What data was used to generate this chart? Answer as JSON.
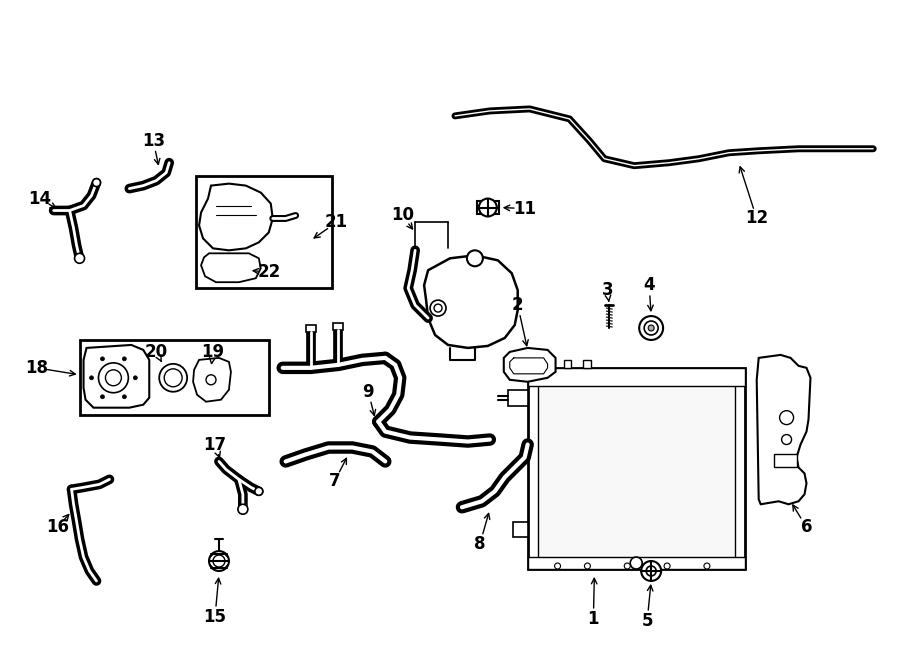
{
  "bg_color": "#ffffff",
  "lc": "#000000",
  "fig_w": 9.0,
  "fig_h": 6.61
}
